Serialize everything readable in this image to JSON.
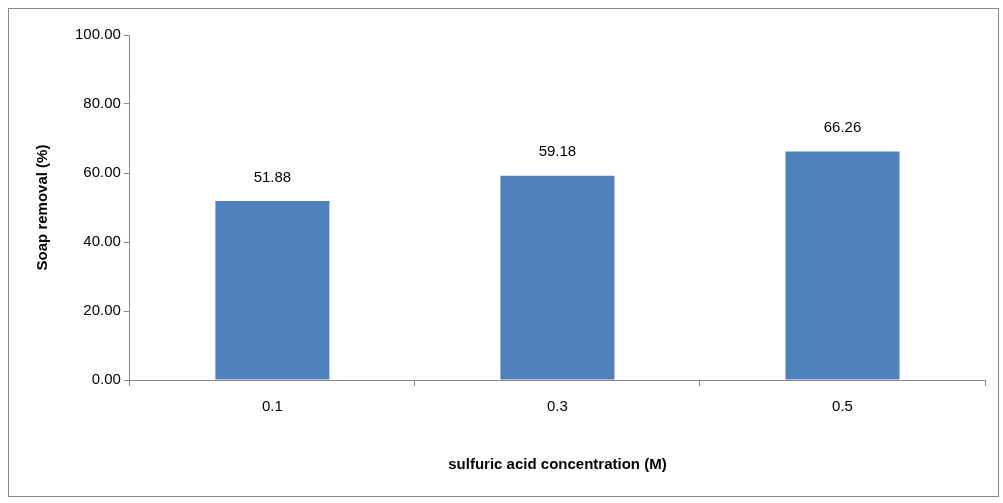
{
  "chart_data": {
    "type": "bar",
    "xlabel": "sulfuric acid concentration (M)",
    "ylabel": "Soap removal (%)",
    "categories": [
      "0.1",
      "0.3",
      "0.5"
    ],
    "values": [
      51.88,
      59.18,
      66.26
    ],
    "color": "#4f81bd",
    "ylim": [
      0,
      100
    ],
    "yticks": [
      {
        "value": 0,
        "label": "0.00"
      },
      {
        "value": 20,
        "label": "20.00"
      },
      {
        "value": 40,
        "label": "40.00"
      },
      {
        "value": 60,
        "label": "60.00"
      },
      {
        "value": 80,
        "label": "80.00"
      },
      {
        "value": 100,
        "label": "100.00"
      }
    ],
    "data_labels": true,
    "grid": false,
    "legend": false
  }
}
